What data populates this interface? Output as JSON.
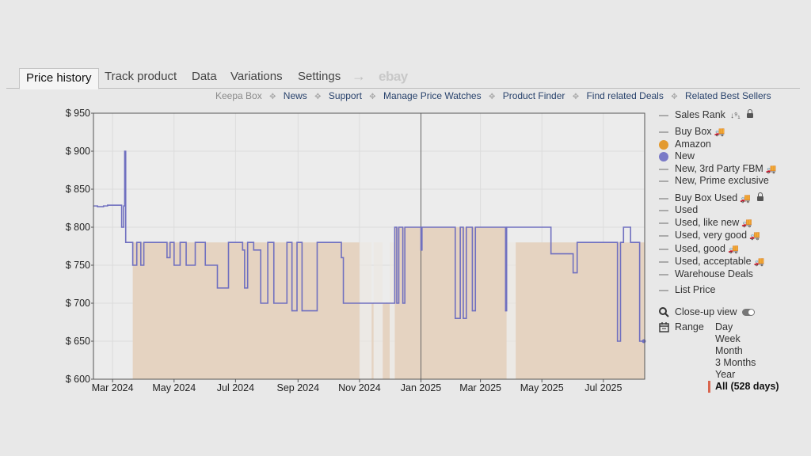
{
  "tabs": [
    {
      "label": "Price history",
      "active": true
    },
    {
      "label": "Track product"
    },
    {
      "label": "Data"
    },
    {
      "label": "Variations"
    },
    {
      "label": "Settings"
    }
  ],
  "tab_arrow": "→",
  "tab_ebay": "ebay",
  "sublinks": {
    "keepa_box": "Keepa Box",
    "links": [
      "News",
      "Support",
      "Manage Price Watches",
      "Product Finder",
      "Find related Deals",
      "Related Best Sellers"
    ]
  },
  "legend": {
    "sales_rank": "Sales Rank",
    "buy_box": "Buy Box",
    "amazon": "Amazon",
    "new": "New",
    "new_3p_fbm": "New, 3rd Party FBM",
    "new_prime": "New, Prime exclusive",
    "buy_box_used": "Buy Box Used",
    "used": "Used",
    "used_like_new": "Used, like new",
    "used_very_good": "Used, very good",
    "used_good": "Used, good",
    "used_acceptable": "Used, acceptable",
    "warehouse": "Warehouse Deals",
    "list_price": "List Price",
    "closeup": "Close-up view",
    "range": "Range",
    "truck_glyph": "🚚",
    "colors": {
      "amazon": "#e39a2f",
      "new": "#7a7ac7",
      "dash": "#aaaaaa"
    }
  },
  "range_options": [
    {
      "label": "Day"
    },
    {
      "label": "Week"
    },
    {
      "label": "Month"
    },
    {
      "label": "3 Months"
    },
    {
      "label": "Year"
    },
    {
      "label": "All (528 days)",
      "active": true
    }
  ],
  "chart_data": {
    "type": "area",
    "ylim": [
      600,
      950
    ],
    "yticks": [
      600,
      650,
      700,
      750,
      800,
      850,
      900,
      950
    ],
    "ytick_labels": [
      "$ 600",
      "$ 650",
      "$ 700",
      "$ 750",
      "$ 800",
      "$ 850",
      "$ 900",
      "$ 950"
    ],
    "x_start": "2024-02-11",
    "x_end": "2025-08-11",
    "xticks": [
      {
        "date": "2024-03-01",
        "label": "Mar 2024"
      },
      {
        "date": "2024-05-01",
        "label": "May 2024"
      },
      {
        "date": "2024-07-01",
        "label": "Jul 2024"
      },
      {
        "date": "2024-09-01",
        "label": "Sep 2024"
      },
      {
        "date": "2024-11-01",
        "label": "Nov 2024"
      },
      {
        "date": "2025-01-01",
        "label": "Jan 2025"
      },
      {
        "date": "2025-03-01",
        "label": "Mar 2025"
      },
      {
        "date": "2025-05-01",
        "label": "May 2025"
      },
      {
        "date": "2025-07-01",
        "label": "Jul 2025"
      }
    ],
    "marker_date": "2025-01-01",
    "colors": {
      "amazon_fill": "#e5d3c1",
      "amazon_gap": "#ece7e1",
      "new_line": "#7070c0",
      "grid": "#dcdcdc",
      "plot_bg": "#ececec"
    },
    "series": [
      {
        "name": "Amazon",
        "style": "area",
        "segments": [
          {
            "start": "2024-03-21",
            "end": "2024-11-01",
            "price": 780
          },
          {
            "start": "2024-11-13",
            "end": "2024-11-15",
            "price": 700
          },
          {
            "start": "2024-11-24",
            "end": "2024-12-01",
            "price": 700
          },
          {
            "start": "2024-12-06",
            "end": "2025-03-27",
            "price": 800
          },
          {
            "start": "2025-04-05",
            "end": "2025-08-11",
            "price": 780
          }
        ]
      },
      {
        "name": "New",
        "style": "step",
        "points": [
          [
            "2024-02-11",
            828
          ],
          [
            "2024-02-15",
            827
          ],
          [
            "2024-02-21",
            828
          ],
          [
            "2024-02-25",
            829
          ],
          [
            "2024-03-10",
            800
          ],
          [
            "2024-03-12",
            828
          ],
          [
            "2024-03-13",
            900
          ],
          [
            "2024-03-14",
            780
          ],
          [
            "2024-03-21",
            750
          ],
          [
            "2024-03-25",
            780
          ],
          [
            "2024-03-29",
            750
          ],
          [
            "2024-04-01",
            780
          ],
          [
            "2024-04-24",
            760
          ],
          [
            "2024-04-27",
            780
          ],
          [
            "2024-05-01",
            750
          ],
          [
            "2024-05-07",
            780
          ],
          [
            "2024-05-13",
            750
          ],
          [
            "2024-05-22",
            780
          ],
          [
            "2024-06-01",
            750
          ],
          [
            "2024-06-13",
            720
          ],
          [
            "2024-06-24",
            780
          ],
          [
            "2024-07-08",
            770
          ],
          [
            "2024-07-10",
            720
          ],
          [
            "2024-07-13",
            780
          ],
          [
            "2024-07-19",
            770
          ],
          [
            "2024-07-26",
            700
          ],
          [
            "2024-08-02",
            780
          ],
          [
            "2024-08-08",
            700
          ],
          [
            "2024-08-21",
            780
          ],
          [
            "2024-08-26",
            690
          ],
          [
            "2024-08-31",
            780
          ],
          [
            "2024-09-05",
            690
          ],
          [
            "2024-09-20",
            780
          ],
          [
            "2024-10-14",
            760
          ],
          [
            "2024-10-16",
            700
          ],
          [
            "2024-11-01",
            700
          ],
          [
            "2024-11-15",
            700
          ],
          [
            "2024-11-28",
            700
          ],
          [
            "2024-12-06",
            800
          ],
          [
            "2024-12-08",
            700
          ],
          [
            "2024-12-10",
            800
          ],
          [
            "2024-12-14",
            700
          ],
          [
            "2024-12-16",
            800
          ],
          [
            "2025-01-01",
            770
          ],
          [
            "2025-01-02",
            800
          ],
          [
            "2025-02-04",
            680
          ],
          [
            "2025-02-09",
            800
          ],
          [
            "2025-02-12",
            680
          ],
          [
            "2025-02-15",
            800
          ],
          [
            "2025-02-21",
            690
          ],
          [
            "2025-02-24",
            800
          ],
          [
            "2025-03-26",
            690
          ],
          [
            "2025-03-27",
            800
          ],
          [
            "2025-05-10",
            765
          ],
          [
            "2025-05-28",
            765
          ],
          [
            "2025-06-01",
            740
          ],
          [
            "2025-06-05",
            780
          ],
          [
            "2025-07-15",
            650
          ],
          [
            "2025-07-18",
            780
          ],
          [
            "2025-07-21",
            800
          ],
          [
            "2025-07-28",
            780
          ],
          [
            "2025-08-06",
            650
          ]
        ]
      }
    ]
  }
}
